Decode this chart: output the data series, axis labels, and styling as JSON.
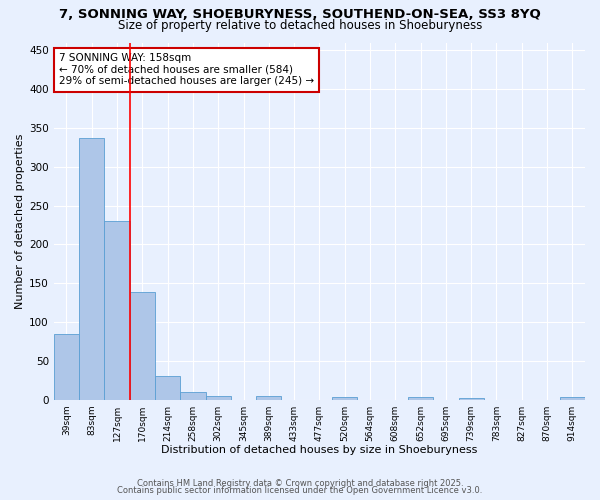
{
  "title1": "7, SONNING WAY, SHOEBURYNESS, SOUTHEND-ON-SEA, SS3 8YQ",
  "title2": "Size of property relative to detached houses in Shoeburyness",
  "xlabel": "Distribution of detached houses by size in Shoeburyness",
  "ylabel": "Number of detached properties",
  "categories": [
    "39sqm",
    "83sqm",
    "127sqm",
    "170sqm",
    "214sqm",
    "258sqm",
    "302sqm",
    "345sqm",
    "389sqm",
    "433sqm",
    "477sqm",
    "520sqm",
    "564sqm",
    "608sqm",
    "652sqm",
    "695sqm",
    "739sqm",
    "783sqm",
    "827sqm",
    "870sqm",
    "914sqm"
  ],
  "values": [
    84,
    337,
    230,
    138,
    30,
    10,
    5,
    0,
    5,
    0,
    0,
    3,
    0,
    0,
    3,
    0,
    2,
    0,
    0,
    0,
    3
  ],
  "bar_color": "#aec6e8",
  "bar_edge_color": "#5a9fd4",
  "background_color": "#e8f0fe",
  "grid_color": "#ffffff",
  "red_line_x": 2.5,
  "annotation_text": "7 SONNING WAY: 158sqm\n← 70% of detached houses are smaller (584)\n29% of semi-detached houses are larger (245) →",
  "annotation_box_color": "#ffffff",
  "annotation_box_edge": "#cc0000",
  "ylim": [
    0,
    460
  ],
  "yticks": [
    0,
    50,
    100,
    150,
    200,
    250,
    300,
    350,
    400,
    450
  ],
  "footer1": "Contains HM Land Registry data © Crown copyright and database right 2025.",
  "footer2": "Contains public sector information licensed under the Open Government Licence v3.0.",
  "title_fontsize": 9.5,
  "subtitle_fontsize": 8.5
}
